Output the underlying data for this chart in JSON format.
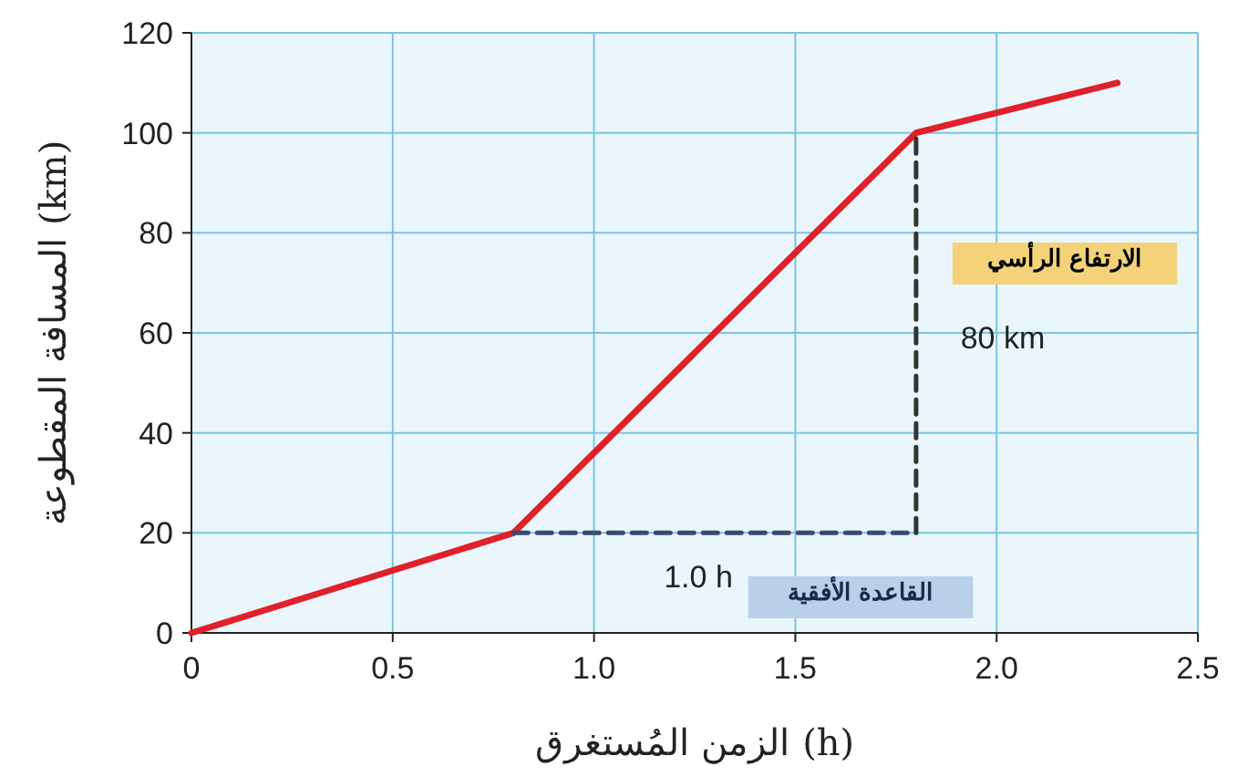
{
  "chart_data": {
    "type": "line",
    "xlabel": "الزمن المُستغرق (h)",
    "ylabel": "المسافة المقطوعة (km)",
    "xlim": [
      0,
      2.5
    ],
    "xticks": [
      0,
      {
        "value": 0.5,
        "label": "0.5"
      },
      {
        "value": 1,
        "label": "1.0"
      },
      {
        "value": 1.5,
        "label": "1.5"
      },
      {
        "value": 2,
        "label": "2.0"
      },
      {
        "value": 2.5,
        "label": "2.5"
      }
    ],
    "ylim": [
      0,
      120
    ],
    "yticks": [
      0,
      20,
      40,
      60,
      80,
      100,
      120
    ],
    "grid": true,
    "series": [
      {
        "x": [
          0,
          0.8,
          1.8,
          2.3
        ],
        "values": [
          0,
          20,
          100,
          110
        ],
        "color": "#e0202a",
        "line_style": "solid"
      },
      {
        "x": [
          0.8,
          1.8
        ],
        "values": [
          20,
          20
        ],
        "color": "#3a4a6a",
        "line_style": "dashed"
      },
      {
        "x": [
          1.8,
          1.8
        ],
        "values": [
          20,
          100
        ],
        "color": "#333333",
        "line_style": "dashed"
      }
    ],
    "annotations": [
      "الارتفاع الرأسي",
      "80 km",
      "1.0 h",
      "القاعدة الأفقية"
    ]
  }
}
